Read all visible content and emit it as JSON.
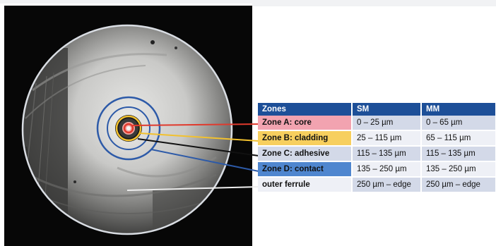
{
  "table": {
    "headers": [
      "Zones",
      "SM",
      "MM"
    ],
    "rows": [
      {
        "zone": "Zone A: core",
        "sm": "0 – 25 µm",
        "mm": "0 – 65 µm",
        "color": "#f2a3b0"
      },
      {
        "zone": "Zone B: cladding",
        "sm": "25 – 115 µm",
        "mm": "65 – 115 µm",
        "color": "#f7cf5e"
      },
      {
        "zone": "Zone C: adhesive",
        "sm": "115 – 135 µm",
        "mm": "115 – 135 µm",
        "color": "#d3d9e8"
      },
      {
        "zone": "Zone D: contact",
        "sm": "135 – 250 µm",
        "mm": "135 – 250 µm",
        "color": "#4f86cf"
      },
      {
        "zone": "outer ferrule",
        "sm": "250 µm – edge",
        "mm": "250 µm – edge",
        "color": "#eef0f6"
      }
    ]
  },
  "colors": {
    "header_bg": "#1d4f98",
    "line_core": "#e03a2d",
    "line_cladding": "#f2c12e",
    "line_adhesive": "#111111",
    "line_contact": "#2d5aa8",
    "line_ferrule": "#f2f2f2"
  }
}
